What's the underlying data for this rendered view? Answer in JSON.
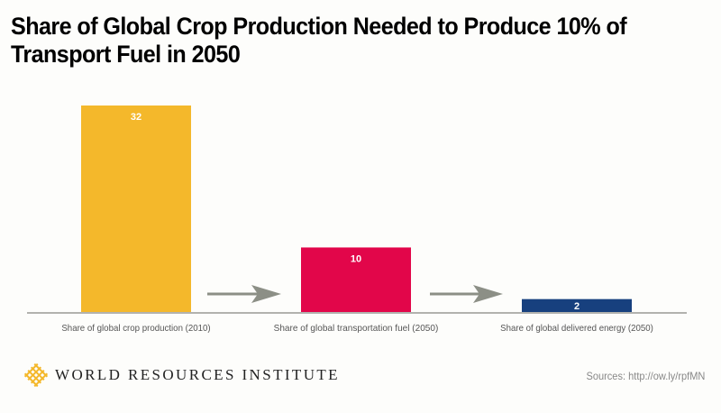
{
  "chart_data": {
    "type": "bar",
    "title": "Share of Global Crop Production Needed to Produce 10% of Transport Fuel in 2050",
    "categories": [
      "Share of global crop production (2010)",
      "Share of global transportation fuel (2050)",
      "Share of global delivered energy (2050)"
    ],
    "values": [
      32,
      10,
      2
    ],
    "data_labels": [
      "32",
      "10",
      "2"
    ],
    "colors": [
      "#f4b82b",
      "#e2064a",
      "#17407e"
    ],
    "arrow_color": "#8c8f86",
    "xlabel": "",
    "ylabel": "",
    "ylim": [
      0,
      32
    ],
    "grid": false,
    "legend": "none"
  },
  "footer": {
    "organization": "WORLD RESOURCES INSTITUTE",
    "logo_color": "#f4b82b",
    "source": "Sources: http://ow.ly/rpfMN"
  }
}
